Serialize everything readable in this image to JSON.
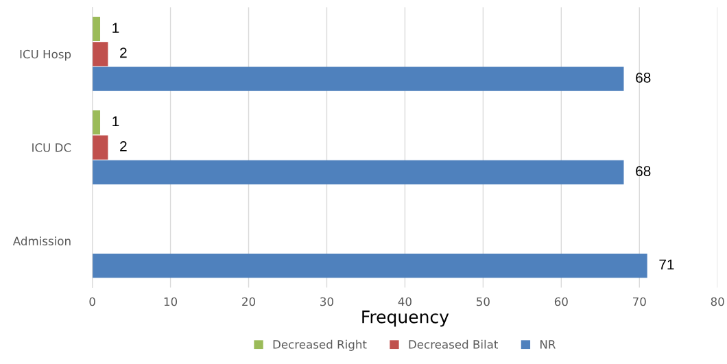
{
  "chart_data": {
    "type": "bar",
    "orientation": "horizontal",
    "xlabel": "Frequency",
    "categories": [
      "ICU Hosp",
      "ICU DC",
      "Admission"
    ],
    "series": [
      {
        "name": "Decreased Right",
        "color": "#9bbb59",
        "values": [
          1,
          1,
          null
        ]
      },
      {
        "name": "Decreased Bilat",
        "color": "#c0504d",
        "values": [
          2,
          2,
          null
        ]
      },
      {
        "name": "NR",
        "color": "#4f81bd",
        "values": [
          68,
          68,
          71
        ]
      }
    ],
    "xlim": [
      0,
      80
    ],
    "xticks": [
      0,
      10,
      20,
      30,
      40,
      50,
      60,
      70,
      80
    ],
    "grid": "x",
    "legend": "bottom",
    "data_labels": true
  }
}
